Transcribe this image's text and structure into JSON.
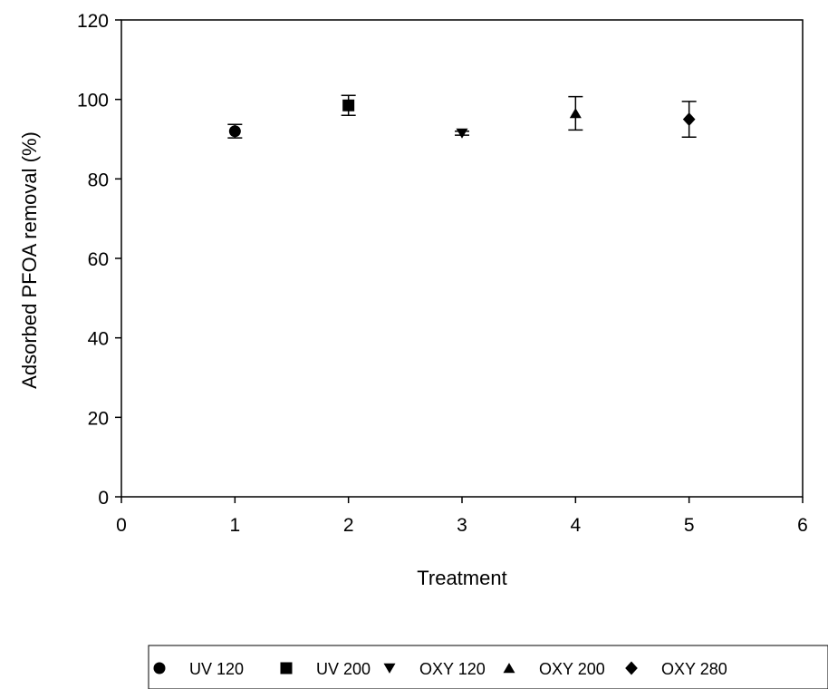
{
  "chart_data": {
    "type": "scatter",
    "title": "",
    "xlabel": "Treatment",
    "ylabel": "Adsorbed PFOA removal (%)",
    "xlim": [
      0,
      6
    ],
    "ylim": [
      0,
      120
    ],
    "xticks": [
      "0",
      "1",
      "2",
      "3",
      "4",
      "5",
      "6"
    ],
    "yticks": [
      "0",
      "20",
      "40",
      "60",
      "80",
      "100",
      "120"
    ],
    "grid": false,
    "legend_position": "bottom",
    "series": [
      {
        "name": "UV 120",
        "marker": "circle",
        "x": 1,
        "y": 92.0,
        "err": 1.7
      },
      {
        "name": "UV 200",
        "marker": "square",
        "x": 2,
        "y": 98.5,
        "err": 2.5
      },
      {
        "name": "OXY 120",
        "marker": "triangle-down",
        "x": 3,
        "y": 91.5,
        "err": 0.5
      },
      {
        "name": "OXY 200",
        "marker": "triangle-up",
        "x": 4,
        "y": 96.5,
        "err": 4.2
      },
      {
        "name": "OXY 280",
        "marker": "diamond",
        "x": 5,
        "y": 95.0,
        "err": 4.5
      }
    ],
    "colors": {
      "marker": "#000000",
      "axis": "#000000"
    }
  }
}
